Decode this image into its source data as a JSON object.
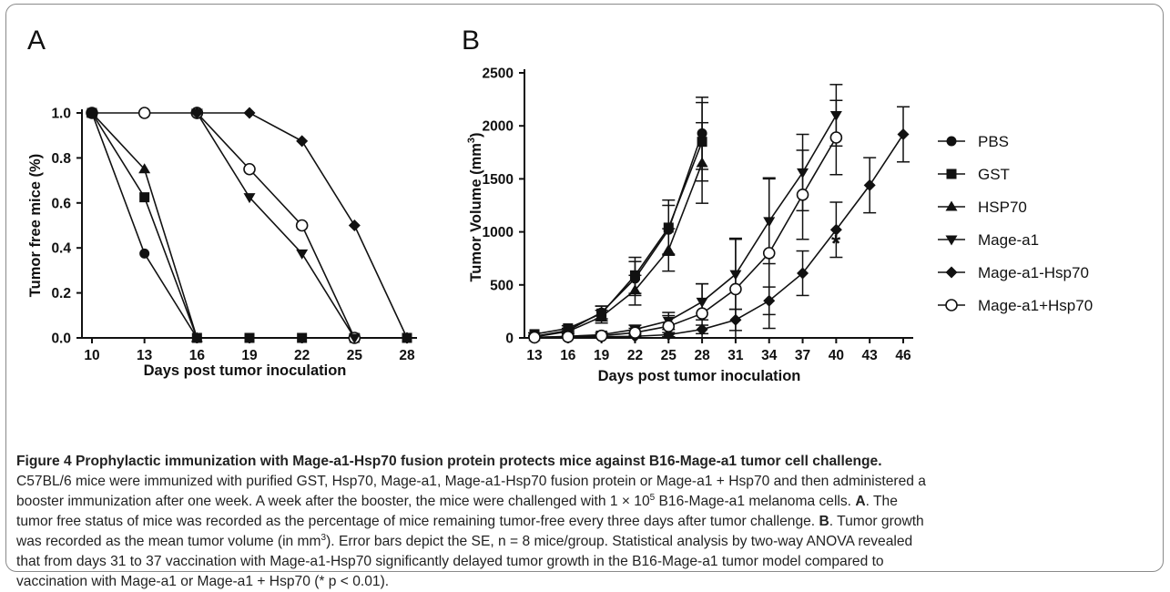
{
  "panel_letters": {
    "a": "A",
    "b": "B"
  },
  "chart_data": [
    {
      "panel": "A",
      "type": "line",
      "ylabel": "Tumor free mice (%)",
      "xlabel": "Days post tumor inoculation",
      "x_categories": [
        10,
        13,
        16,
        19,
        22,
        25,
        28
      ],
      "y_ticks": [
        "0.0",
        "0.2",
        "0.4",
        "0.6",
        "0.8",
        "1.0"
      ],
      "ylim": [
        0,
        1
      ],
      "series": [
        {
          "marker": "circle",
          "x": [
            10,
            13,
            16
          ],
          "y": [
            1.0,
            1.0,
            1.0
          ]
        },
        {
          "marker": "filled-circle",
          "x": [
            10,
            13,
            16
          ],
          "y": [
            1.0,
            0.375,
            0.0
          ]
        },
        {
          "marker": "triangle-up",
          "x": [
            10,
            13,
            16
          ],
          "y": [
            1.0,
            0.75,
            0.0
          ]
        },
        {
          "marker": "square",
          "x": [
            10,
            13,
            16,
            19,
            22,
            25,
            28
          ],
          "y": [
            1.0,
            0.625,
            0.0,
            0.0,
            0.0,
            0.0,
            0.0
          ]
        },
        {
          "marker": "circle",
          "x": [
            16,
            19,
            22,
            25
          ],
          "y": [
            1.0,
            0.75,
            0.5,
            0.0
          ]
        },
        {
          "marker": "triangle-down",
          "x": [
            16,
            19,
            22,
            25
          ],
          "y": [
            1.0,
            0.625,
            0.375,
            0.0
          ]
        },
        {
          "marker": "diamond",
          "x": [
            16,
            19,
            22,
            25,
            28
          ],
          "y": [
            1.0,
            1.0,
            0.875,
            0.5,
            0.0
          ]
        }
      ]
    },
    {
      "panel": "B",
      "type": "line",
      "ylabel": "Tumor Volume (mm",
      "ylabel_sup": "3",
      "ylabel_end": ")",
      "xlabel": "Days post tumor inoculation",
      "x_categories": [
        13,
        16,
        19,
        22,
        25,
        28,
        31,
        34,
        37,
        40,
        43,
        46
      ],
      "y_ticks": [
        "0",
        "500",
        "1000",
        "1500",
        "2000",
        "2500"
      ],
      "ylim": [
        0,
        2500
      ],
      "annotation": "*",
      "series": [
        {
          "name": "PBS",
          "marker": "filled-circle",
          "x": [
            13,
            16,
            19,
            22,
            25,
            28
          ],
          "y": [
            15,
            70,
            240,
            560,
            1020,
            1930
          ],
          "err": [
            10,
            20,
            60,
            160,
            230,
            340
          ]
        },
        {
          "name": "GST",
          "marker": "square",
          "x": [
            13,
            16,
            19,
            22,
            25,
            28
          ],
          "y": [
            35,
            90,
            230,
            590,
            1040,
            1850
          ],
          "err": [
            12,
            25,
            70,
            170,
            260,
            370
          ]
        },
        {
          "name": "HSP70",
          "marker": "triangle-up",
          "x": [
            13,
            16,
            19,
            22,
            25,
            28
          ],
          "y": [
            10,
            60,
            200,
            450,
            830,
            1650
          ],
          "err": [
            8,
            20,
            60,
            140,
            200,
            380
          ]
        },
        {
          "name": "Mage-a1",
          "marker": "triangle-down",
          "x": [
            13,
            16,
            19,
            22,
            25,
            28,
            31,
            34,
            37,
            40
          ],
          "y": [
            5,
            15,
            30,
            80,
            160,
            340,
            600,
            1100,
            1560,
            2100
          ],
          "err": [
            5,
            10,
            20,
            40,
            80,
            170,
            330,
            400,
            360,
            290
          ]
        },
        {
          "name": "Mage-a1-Hsp70",
          "marker": "diamond",
          "x": [
            13,
            16,
            19,
            22,
            25,
            28,
            31,
            34,
            37,
            40,
            43,
            46
          ],
          "y": [
            0,
            5,
            10,
            15,
            30,
            80,
            170,
            350,
            610,
            1020,
            1440,
            1920
          ],
          "err": [
            3,
            5,
            8,
            10,
            20,
            40,
            100,
            130,
            210,
            260,
            260,
            260
          ]
        },
        {
          "name": "Mage-a1+Hsp70",
          "marker": "circle",
          "x": [
            13,
            16,
            19,
            22,
            25,
            28,
            31,
            34,
            37,
            40
          ],
          "y": [
            5,
            10,
            20,
            50,
            110,
            230,
            460,
            800,
            1350,
            1890
          ],
          "err": [
            5,
            8,
            15,
            40,
            100,
            280,
            480,
            710,
            420,
            350
          ]
        }
      ]
    }
  ],
  "caption": {
    "title": "Figure 4 Prophylactic immunization with Mage-a1-Hsp70 fusion protein protects mice against B16-Mage-a1 tumor cell challenge.",
    "l1": "C57BL/6 mice were immunized with purified GST, Hsp70, Mage-a1, Mage-a1-Hsp70 fusion protein or Mage-a1 + Hsp70 and then administered a",
    "l2a": "booster immunization after one week. A week after the booster, the mice were challenged with 1 × 10",
    "l2sup": "5",
    "l2b": " B16-Mage-a1 melanoma cells. ",
    "l2bold": "A",
    "l2c": ". The",
    "l3": "tumor free status of mice was recorded as the percentage of mice remaining tumor-free every three days after tumor challenge. ",
    "l3bold": "B",
    "l3c": ". Tumor growth",
    "l4a": "was recorded as the mean tumor volume (in mm",
    "l4sup": "3",
    "l4b": "). Error bars depict the SE, n = 8 mice/group. Statistical analysis by two-way ANOVA revealed",
    "l5": "that from days 31 to 37 vaccination with Mage-a1-Hsp70 significantly delayed tumor growth in the B16-Mage-a1 tumor model compared to",
    "l6": "vaccination with Mage-a1 or Mage-a1 + Hsp70 (* p < 0.01)."
  }
}
